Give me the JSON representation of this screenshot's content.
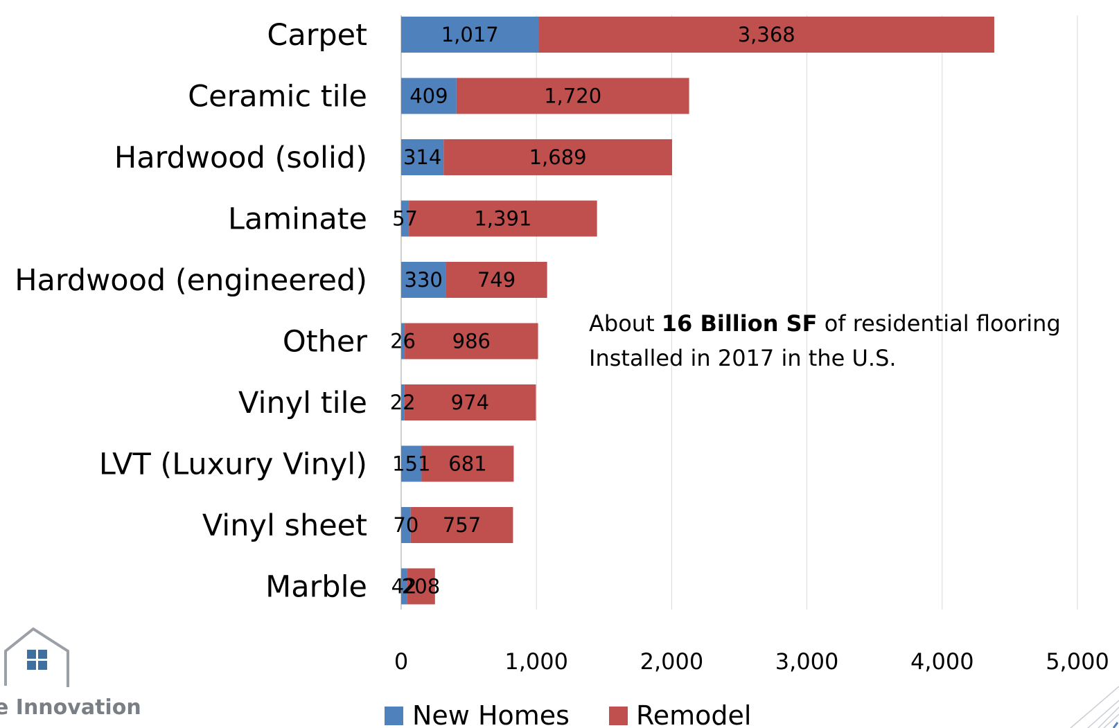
{
  "chart_data": {
    "type": "bar",
    "orientation": "horizontal",
    "stacked": true,
    "categories": [
      "Carpet",
      "Ceramic tile",
      "Hardwood (solid)",
      "Laminate",
      "Hardwood (engineered)",
      "Other",
      "Vinyl tile",
      "LVT (Luxury Vinyl)",
      "Vinyl sheet",
      "Marble"
    ],
    "series": [
      {
        "name": "New Homes",
        "color": "#4f81bd",
        "values": [
          1017,
          409,
          314,
          57,
          330,
          26,
          22,
          151,
          70,
          42
        ],
        "labels": [
          "1,017",
          "409",
          "314",
          "57",
          "330",
          "26",
          "22",
          "151",
          "70",
          "42"
        ]
      },
      {
        "name": "Remodel",
        "color": "#c0504d",
        "values": [
          3368,
          1720,
          1689,
          1391,
          749,
          986,
          974,
          681,
          757,
          208
        ],
        "labels": [
          "3,368",
          "1,720",
          "1,689",
          "1,391",
          "749",
          "986",
          "974",
          "681",
          "757",
          "208"
        ]
      }
    ],
    "xlim": [
      0,
      5000
    ],
    "xticks": [
      0,
      1000,
      2000,
      3000,
      4000,
      5000
    ],
    "xtick_labels": [
      "0",
      "1,000",
      "2,000",
      "3,000",
      "4,000",
      "5,000"
    ],
    "grid": "vertical",
    "legend_position": "bottom",
    "title": "",
    "xlabel": "",
    "ylabel": ""
  },
  "annotation": {
    "prefix": "About ",
    "bold": "16 Billion SF",
    "suffix": " of residential flooring",
    "line2": "Installed in 2017 in the U.S."
  },
  "logo": {
    "text": "e Innovation"
  },
  "colors": {
    "gridline": "#d9d9d9",
    "axis": "#bfbfbf",
    "logo_gray": "#7a7f86",
    "logo_window": "#3f6f9f"
  }
}
